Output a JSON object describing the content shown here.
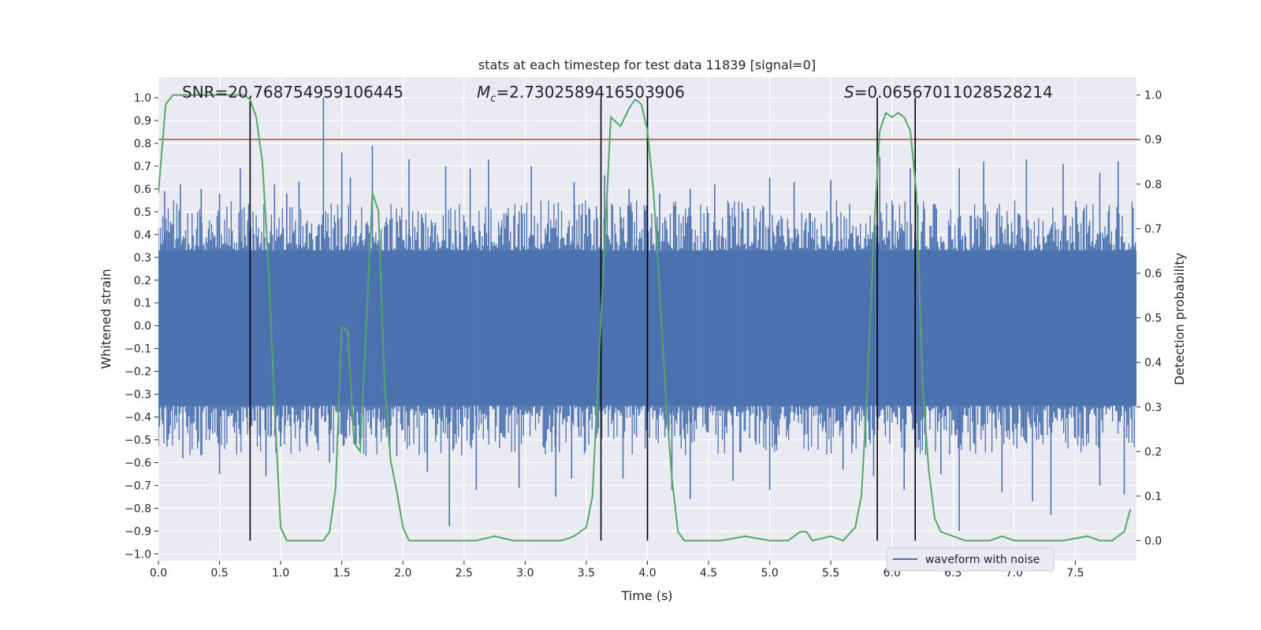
{
  "chart_data": {
    "type": "line",
    "title": "stats at each timestep for test data 11839 [signal=0]",
    "xlabel": "Time (s)",
    "ylabel_left": "Whitened strain",
    "ylabel_right": "Detection probability",
    "xlim": [
      0.0,
      8.0
    ],
    "ylim_left": [
      -1.03,
      1.09
    ],
    "ylim_right": [
      -0.045,
      1.04
    ],
    "x_ticks": [
      0.0,
      0.5,
      1.0,
      1.5,
      2.0,
      2.5,
      3.0,
      3.5,
      4.0,
      4.5,
      5.0,
      5.5,
      6.0,
      6.5,
      7.0,
      7.5
    ],
    "x_tick_labels": [
      "0.0",
      "0.5",
      "1.0",
      "1.5",
      "2.0",
      "2.5",
      "3.0",
      "3.5",
      "4.0",
      "4.5",
      "5.0",
      "5.5",
      "6.0",
      "6.5",
      "7.0",
      "7.5"
    ],
    "y_left_ticks": [
      1.0,
      0.9,
      0.8,
      0.7,
      0.6,
      0.5,
      0.4,
      0.3,
      0.2,
      0.1,
      0.0,
      -0.1,
      -0.2,
      -0.3,
      -0.4,
      -0.5,
      -0.6,
      -0.7,
      -0.8,
      -0.9,
      -1.0
    ],
    "y_left_tick_labels": [
      "1.0",
      "0.9",
      "0.8",
      "0.7",
      "0.6",
      "0.5",
      "0.4",
      "0.3",
      "0.2",
      "0.1",
      "0.0",
      "−0.1",
      "−0.2",
      "−0.3",
      "−0.4",
      "−0.5",
      "−0.6",
      "−0.7",
      "−0.8",
      "−0.9",
      "−1.0"
    ],
    "y_right_ticks": [
      1.0,
      0.9,
      0.8,
      0.7,
      0.6,
      0.5,
      0.4,
      0.3,
      0.2,
      0.1,
      0.0
    ],
    "y_right_tick_labels": [
      "1.0",
      "0.9",
      "0.8",
      "0.7",
      "0.6",
      "0.5",
      "0.4",
      "0.3",
      "0.2",
      "0.1",
      "0.0"
    ],
    "annotations": {
      "snr": "SNR=20.768754959106445",
      "mc_symbol": "M",
      "mc_subscript": "c",
      "mc_value": "=2.7302589416503906",
      "s_symbol": "S",
      "s_value": "=0.06567011028528214"
    },
    "threshold": {
      "y_right": 0.9,
      "color": "#c44e52"
    },
    "vertical_lines_x": [
      0.75,
      3.62,
      4.0,
      5.88,
      6.19
    ],
    "waveform": {
      "name": "waveform with noise",
      "color": "#4c72b0",
      "band_low": -0.35,
      "band_high": 0.33,
      "up_spikes": [
        [
          0.05,
          0.59
        ],
        [
          0.18,
          0.62
        ],
        [
          0.35,
          0.6
        ],
        [
          0.5,
          0.58
        ],
        [
          0.67,
          0.69
        ],
        [
          0.95,
          0.62
        ],
        [
          1.05,
          0.58
        ],
        [
          1.15,
          0.63
        ],
        [
          1.35,
          1.0
        ],
        [
          1.5,
          0.76
        ],
        [
          1.57,
          0.65
        ],
        [
          1.75,
          0.79
        ],
        [
          2.05,
          0.73
        ],
        [
          2.35,
          0.7
        ],
        [
          2.55,
          0.69
        ],
        [
          2.7,
          0.73
        ],
        [
          3.05,
          0.7
        ],
        [
          3.4,
          0.63
        ],
        [
          3.65,
          0.66
        ],
        [
          3.85,
          0.6
        ],
        [
          4.1,
          0.58
        ],
        [
          4.35,
          0.6
        ],
        [
          4.55,
          0.62
        ],
        [
          5.0,
          0.65
        ],
        [
          5.2,
          0.63
        ],
        [
          5.5,
          0.64
        ],
        [
          5.9,
          0.74
        ],
        [
          6.15,
          0.69
        ],
        [
          6.55,
          0.69
        ],
        [
          6.75,
          0.72
        ],
        [
          7.1,
          0.73
        ],
        [
          7.4,
          0.71
        ],
        [
          7.7,
          0.67
        ],
        [
          7.85,
          0.72
        ]
      ],
      "down_spikes": [
        [
          0.07,
          -0.53
        ],
        [
          0.2,
          -0.58
        ],
        [
          0.5,
          -0.65
        ],
        [
          0.88,
          -0.66
        ],
        [
          1.0,
          -0.53
        ],
        [
          1.4,
          -0.6
        ],
        [
          1.65,
          -0.5
        ],
        [
          1.95,
          -0.57
        ],
        [
          2.2,
          -0.64
        ],
        [
          2.38,
          -0.88
        ],
        [
          2.6,
          -0.72
        ],
        [
          2.95,
          -0.71
        ],
        [
          3.25,
          -0.75
        ],
        [
          3.38,
          -0.67
        ],
        [
          3.8,
          -0.67
        ],
        [
          4.2,
          -0.72
        ],
        [
          4.35,
          -0.76
        ],
        [
          4.7,
          -0.68
        ],
        [
          5.0,
          -0.72
        ],
        [
          5.6,
          -0.63
        ],
        [
          5.85,
          -0.66
        ],
        [
          6.1,
          -0.72
        ],
        [
          6.4,
          -0.65
        ],
        [
          6.55,
          -0.9
        ],
        [
          6.9,
          -0.73
        ],
        [
          7.15,
          -0.77
        ],
        [
          7.3,
          -0.83
        ],
        [
          7.7,
          -0.7
        ],
        [
          7.9,
          -0.74
        ]
      ]
    },
    "detection_probability": {
      "color": "#55a868",
      "x": [
        0.0,
        0.06,
        0.12,
        0.2,
        0.3,
        0.4,
        0.5,
        0.6,
        0.7,
        0.75,
        0.8,
        0.85,
        0.9,
        0.95,
        1.0,
        1.05,
        1.1,
        1.2,
        1.3,
        1.35,
        1.4,
        1.45,
        1.5,
        1.55,
        1.6,
        1.65,
        1.7,
        1.75,
        1.8,
        1.85,
        1.9,
        1.95,
        2.0,
        2.05,
        2.1,
        2.2,
        2.4,
        2.6,
        2.75,
        2.9,
        3.1,
        3.3,
        3.4,
        3.5,
        3.55,
        3.62,
        3.7,
        3.78,
        3.85,
        3.9,
        3.95,
        4.0,
        4.05,
        4.1,
        4.15,
        4.2,
        4.25,
        4.3,
        4.4,
        4.6,
        4.8,
        5.0,
        5.15,
        5.2,
        5.25,
        5.3,
        5.35,
        5.5,
        5.6,
        5.7,
        5.75,
        5.8,
        5.85,
        5.9,
        5.95,
        6.0,
        6.05,
        6.1,
        6.15,
        6.2,
        6.25,
        6.3,
        6.35,
        6.4,
        6.5,
        6.6,
        6.7,
        6.8,
        6.9,
        7.0,
        7.2,
        7.4,
        7.6,
        7.7,
        7.8,
        7.9,
        7.95
      ],
      "y": [
        0.78,
        0.98,
        1.0,
        1.0,
        1.0,
        1.0,
        1.0,
        1.0,
        1.0,
        0.99,
        0.95,
        0.85,
        0.62,
        0.3,
        0.03,
        0.0,
        0.0,
        0.0,
        0.0,
        0.0,
        0.02,
        0.12,
        0.48,
        0.47,
        0.22,
        0.2,
        0.48,
        0.78,
        0.74,
        0.35,
        0.18,
        0.11,
        0.03,
        0.0,
        0.0,
        0.0,
        0.0,
        0.0,
        0.01,
        0.0,
        0.0,
        0.0,
        0.01,
        0.03,
        0.1,
        0.5,
        0.95,
        0.93,
        0.97,
        0.99,
        0.98,
        0.92,
        0.78,
        0.56,
        0.32,
        0.14,
        0.02,
        0.0,
        0.0,
        0.0,
        0.01,
        0.0,
        0.0,
        0.01,
        0.02,
        0.02,
        0.0,
        0.01,
        0.0,
        0.03,
        0.1,
        0.35,
        0.68,
        0.92,
        0.96,
        0.95,
        0.96,
        0.95,
        0.92,
        0.78,
        0.35,
        0.16,
        0.05,
        0.02,
        0.01,
        0.0,
        0.0,
        0.0,
        0.01,
        0.0,
        0.0,
        0.0,
        0.01,
        0.0,
        0.0,
        0.02,
        0.07
      ]
    },
    "legend": {
      "label": "waveform with noise",
      "placement": "lower-right"
    }
  }
}
